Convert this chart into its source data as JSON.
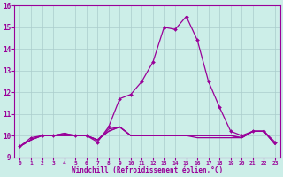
{
  "xlabel": "Windchill (Refroidissement éolien,°C)",
  "background_color": "#cceee8",
  "line_color": "#990099",
  "grid_color": "#aacccc",
  "xlim": [
    -0.5,
    23.5
  ],
  "ylim": [
    9,
    16
  ],
  "yticks": [
    9,
    10,
    11,
    12,
    13,
    14,
    15,
    16
  ],
  "xticks": [
    0,
    1,
    2,
    3,
    4,
    5,
    6,
    7,
    8,
    9,
    10,
    11,
    12,
    13,
    14,
    15,
    16,
    17,
    18,
    19,
    20,
    21,
    22,
    23
  ],
  "series": [
    [
      9.5,
      9.8,
      10.0,
      10.0,
      10.1,
      10.0,
      10.0,
      9.8,
      10.2,
      10.4,
      10.0,
      10.0,
      10.0,
      10.0,
      10.0,
      10.0,
      10.0,
      10.0,
      10.0,
      10.0,
      9.9,
      10.2,
      10.2,
      9.6
    ],
    [
      9.5,
      9.8,
      10.0,
      10.0,
      10.0,
      10.0,
      10.0,
      9.8,
      10.3,
      10.4,
      10.0,
      10.0,
      10.0,
      10.0,
      10.0,
      10.0,
      10.0,
      10.0,
      10.0,
      10.0,
      9.9,
      10.2,
      10.2,
      9.6
    ],
    [
      9.5,
      9.8,
      10.0,
      10.0,
      10.0,
      10.0,
      10.0,
      9.8,
      10.2,
      10.4,
      10.0,
      10.0,
      10.0,
      10.0,
      10.0,
      10.0,
      9.9,
      9.9,
      9.9,
      9.9,
      9.9,
      10.2,
      10.2,
      9.6
    ],
    [
      9.5,
      9.9,
      10.0,
      10.0,
      10.1,
      10.0,
      10.0,
      9.7,
      10.4,
      11.7,
      11.9,
      12.5,
      13.4,
      15.0,
      14.9,
      15.5,
      14.4,
      12.5,
      11.3,
      10.2,
      10.0,
      10.2,
      10.2,
      9.7
    ]
  ]
}
